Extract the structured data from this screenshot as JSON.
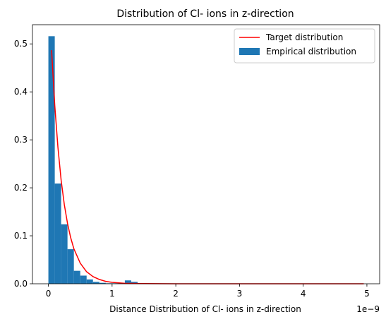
{
  "chart_data": {
    "type": "bar",
    "title": "Distribution of Cl- ions in z-direction",
    "xlabel": "Distance Distribution of Cl- ions in z-direction",
    "ylabel": "",
    "x_offset_label": "1e−9",
    "xlim": [
      -0.25,
      5.2
    ],
    "ylim": [
      0,
      0.54
    ],
    "x_ticks": [
      0,
      1,
      2,
      3,
      4,
      5
    ],
    "y_ticks": [
      0.0,
      0.1,
      0.2,
      0.3,
      0.4,
      0.5
    ],
    "x_tick_labels": [
      "0",
      "1",
      "2",
      "3",
      "4",
      "5"
    ],
    "y_tick_labels": [
      "0.0",
      "0.1",
      "0.2",
      "0.3",
      "0.4",
      "0.5"
    ],
    "grid": false,
    "legend": {
      "placement": "top-right",
      "entries": [
        "Target distribution",
        "Empirical distribution"
      ]
    },
    "series": [
      {
        "name": "Empirical distribution",
        "kind": "histogram",
        "color": "#1f77b4",
        "bin_width": 0.1,
        "bin_starts": [
          0.0,
          0.1,
          0.2,
          0.3,
          0.4,
          0.5,
          0.6,
          0.7,
          0.8,
          0.9,
          1.0,
          1.1,
          1.2,
          1.3,
          1.4
        ],
        "values": [
          0.516,
          0.209,
          0.124,
          0.072,
          0.027,
          0.017,
          0.009,
          0.004,
          0.002,
          0.001,
          0.001,
          0.001,
          0.007,
          0.004,
          0.001
        ]
      },
      {
        "name": "Target distribution",
        "kind": "line",
        "color": "#ff0000",
        "x": [
          0.05,
          0.1,
          0.15,
          0.2,
          0.25,
          0.3,
          0.35,
          0.4,
          0.5,
          0.6,
          0.7,
          0.8,
          0.9,
          1.0,
          1.2,
          1.5,
          2.0,
          2.5,
          3.0,
          3.5,
          4.0,
          4.5,
          4.95
        ],
        "y": [
          0.487,
          0.372,
          0.284,
          0.216,
          0.165,
          0.126,
          0.096,
          0.073,
          0.043,
          0.025,
          0.015,
          0.009,
          0.005,
          0.003,
          0.001,
          0.0003,
          3e-05,
          0.0,
          0.0,
          0.0,
          0.0,
          0.0,
          0.0
        ]
      }
    ]
  }
}
